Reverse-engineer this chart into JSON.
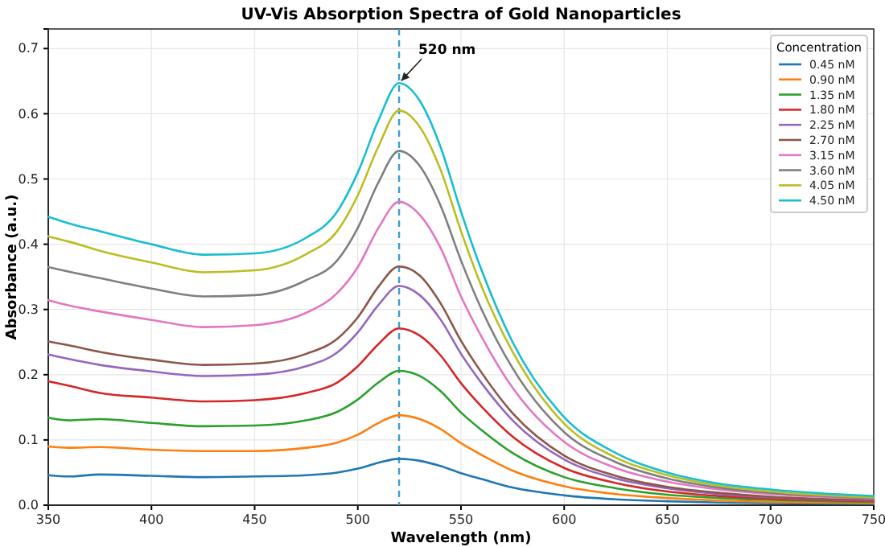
{
  "chart_data": {
    "type": "line",
    "title": "UV-Vis Absorption Spectra of Gold Nanoparticles",
    "xlabel": "Wavelength (nm)",
    "ylabel": "Absorbance (a.u.)",
    "legend_title": "Concentration",
    "x": [
      350,
      360,
      375,
      400,
      425,
      450,
      475,
      490,
      500,
      510,
      520,
      530,
      540,
      550,
      560,
      575,
      600,
      625,
      650,
      675,
      700,
      750
    ],
    "series": [
      {
        "name": "0.45 nM",
        "color": "#1f77b4",
        "values": [
          0.046,
          0.044,
          0.047,
          0.045,
          0.043,
          0.044,
          0.046,
          0.05,
          0.056,
          0.065,
          0.071,
          0.068,
          0.06,
          0.049,
          0.04,
          0.027,
          0.015,
          0.009,
          0.006,
          0.004,
          0.003,
          0.002
        ]
      },
      {
        "name": "0.90 nM",
        "color": "#ff7f0e",
        "values": [
          0.09,
          0.088,
          0.089,
          0.085,
          0.083,
          0.083,
          0.088,
          0.096,
          0.108,
          0.126,
          0.138,
          0.132,
          0.117,
          0.095,
          0.077,
          0.053,
          0.029,
          0.017,
          0.011,
          0.007,
          0.005,
          0.003
        ]
      },
      {
        "name": "1.35 nM",
        "color": "#2ca02c",
        "values": [
          0.134,
          0.13,
          0.132,
          0.126,
          0.121,
          0.122,
          0.13,
          0.143,
          0.162,
          0.188,
          0.206,
          0.198,
          0.175,
          0.142,
          0.115,
          0.08,
          0.043,
          0.026,
          0.016,
          0.011,
          0.008,
          0.005
        ]
      },
      {
        "name": "1.80 nM",
        "color": "#d62728",
        "values": [
          0.19,
          0.183,
          0.172,
          0.165,
          0.159,
          0.161,
          0.172,
          0.188,
          0.213,
          0.247,
          0.271,
          0.26,
          0.23,
          0.187,
          0.151,
          0.105,
          0.057,
          0.034,
          0.021,
          0.014,
          0.01,
          0.006
        ]
      },
      {
        "name": "2.25 nM",
        "color": "#9467bd",
        "values": [
          0.231,
          0.224,
          0.215,
          0.205,
          0.198,
          0.2,
          0.213,
          0.234,
          0.265,
          0.307,
          0.336,
          0.322,
          0.285,
          0.232,
          0.187,
          0.13,
          0.07,
          0.041,
          0.026,
          0.017,
          0.012,
          0.007
        ]
      },
      {
        "name": "2.70 nM",
        "color": "#8c564b",
        "values": [
          0.251,
          0.245,
          0.235,
          0.223,
          0.215,
          0.217,
          0.232,
          0.255,
          0.288,
          0.335,
          0.366,
          0.352,
          0.31,
          0.252,
          0.203,
          0.141,
          0.076,
          0.045,
          0.028,
          0.019,
          0.013,
          0.008
        ]
      },
      {
        "name": "3.15 nM",
        "color": "#e377c2",
        "values": [
          0.314,
          0.306,
          0.297,
          0.284,
          0.273,
          0.276,
          0.295,
          0.325,
          0.365,
          0.425,
          0.465,
          0.445,
          0.395,
          0.32,
          0.258,
          0.18,
          0.097,
          0.057,
          0.036,
          0.024,
          0.017,
          0.01
        ]
      },
      {
        "name": "3.60 nM",
        "color": "#7f7f7f",
        "values": [
          0.365,
          0.358,
          0.348,
          0.332,
          0.32,
          0.322,
          0.345,
          0.375,
          0.425,
          0.495,
          0.543,
          0.52,
          0.46,
          0.375,
          0.3,
          0.21,
          0.112,
          0.066,
          0.041,
          0.027,
          0.019,
          0.011
        ]
      },
      {
        "name": "4.05 nM",
        "color": "#bcbd22",
        "values": [
          0.412,
          0.404,
          0.39,
          0.372,
          0.357,
          0.36,
          0.385,
          0.42,
          0.475,
          0.55,
          0.605,
          0.58,
          0.515,
          0.42,
          0.335,
          0.235,
          0.125,
          0.073,
          0.046,
          0.03,
          0.021,
          0.012
        ]
      },
      {
        "name": "4.50 nM",
        "color": "#17becf",
        "values": [
          0.442,
          0.432,
          0.42,
          0.4,
          0.384,
          0.386,
          0.41,
          0.45,
          0.51,
          0.59,
          0.647,
          0.62,
          0.55,
          0.45,
          0.36,
          0.25,
          0.135,
          0.08,
          0.05,
          0.033,
          0.024,
          0.014
        ]
      }
    ],
    "xlim": [
      350,
      750
    ],
    "xticks": [
      350,
      400,
      450,
      500,
      550,
      600,
      650,
      700,
      750
    ],
    "ylim": [
      0,
      0.73
    ],
    "yticks": [
      {
        "value": 0,
        "label": "0.0"
      },
      0.1,
      0.2,
      0.3,
      0.4,
      0.5,
      0.6,
      0.7
    ],
    "ref_lines": [
      {
        "axis": "x",
        "value": 520,
        "color": "#3a9fd0",
        "line_style": "dashed"
      }
    ],
    "annotations": [
      {
        "text": "520 nm",
        "x": 520,
        "y": 0.647
      }
    ],
    "grid": true,
    "legend": "top right",
    "marker": "none",
    "line_style": "solid"
  }
}
